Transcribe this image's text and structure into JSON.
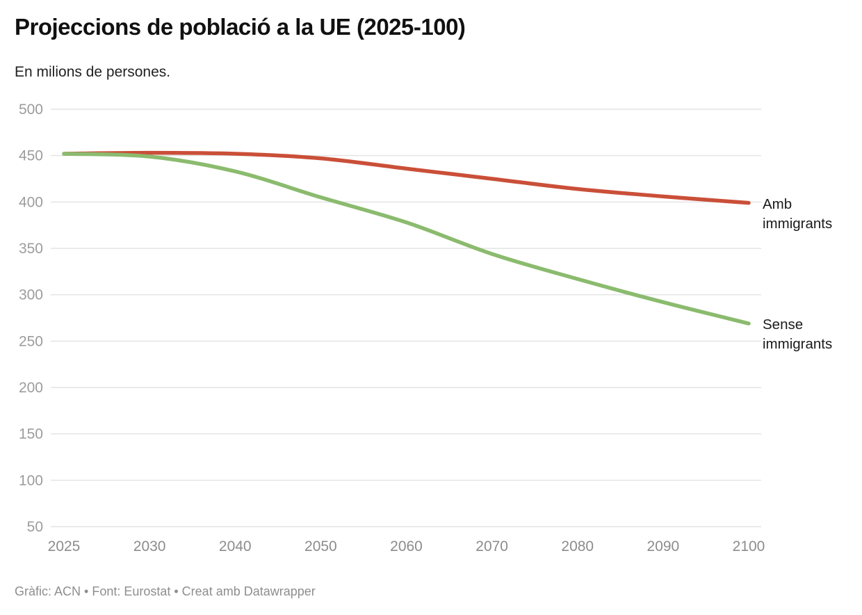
{
  "header": {
    "title": "Projeccions de població a la UE (2025-100)",
    "subtitle": "En milions de persones."
  },
  "footer": {
    "credit": "Gràfic: ACN • Font: Eurostat • Creat amb Datawrapper"
  },
  "colors": {
    "series_amb": "#ca4f38",
    "series_sense": "#8bbb6e",
    "gridline": "#e4e4e4",
    "tick_label": "#9c9c9c",
    "axis_label": "#8c8c8c",
    "series_label_text": "#1a1a1a",
    "title_text": "#111111",
    "footer_text": "#8e8e8e",
    "background": "#ffffff"
  },
  "chart_data": {
    "type": "line",
    "title": "Projeccions de població a la UE (2025-100)",
    "subtitle": "En milions de persones.",
    "xlabel": "",
    "ylabel": "",
    "categories": [
      "2025",
      "2030",
      "2040",
      "2050",
      "2060",
      "2070",
      "2080",
      "2090",
      "2100"
    ],
    "series": [
      {
        "name": "Amb immigrants",
        "color": "#ca4f38",
        "values": [
          452,
          453,
          452,
          447,
          436,
          425,
          414,
          406,
          399
        ]
      },
      {
        "name": "Sense immigrants",
        "color": "#8bbb6e",
        "values": [
          452,
          449,
          433,
          405,
          378,
          344,
          317,
          292,
          269
        ]
      }
    ],
    "y_ticks": [
      50,
      100,
      150,
      200,
      250,
      300,
      350,
      400,
      450,
      500
    ],
    "ylim": [
      50,
      500
    ],
    "grid": true,
    "legend_position": "line-end-labels"
  }
}
